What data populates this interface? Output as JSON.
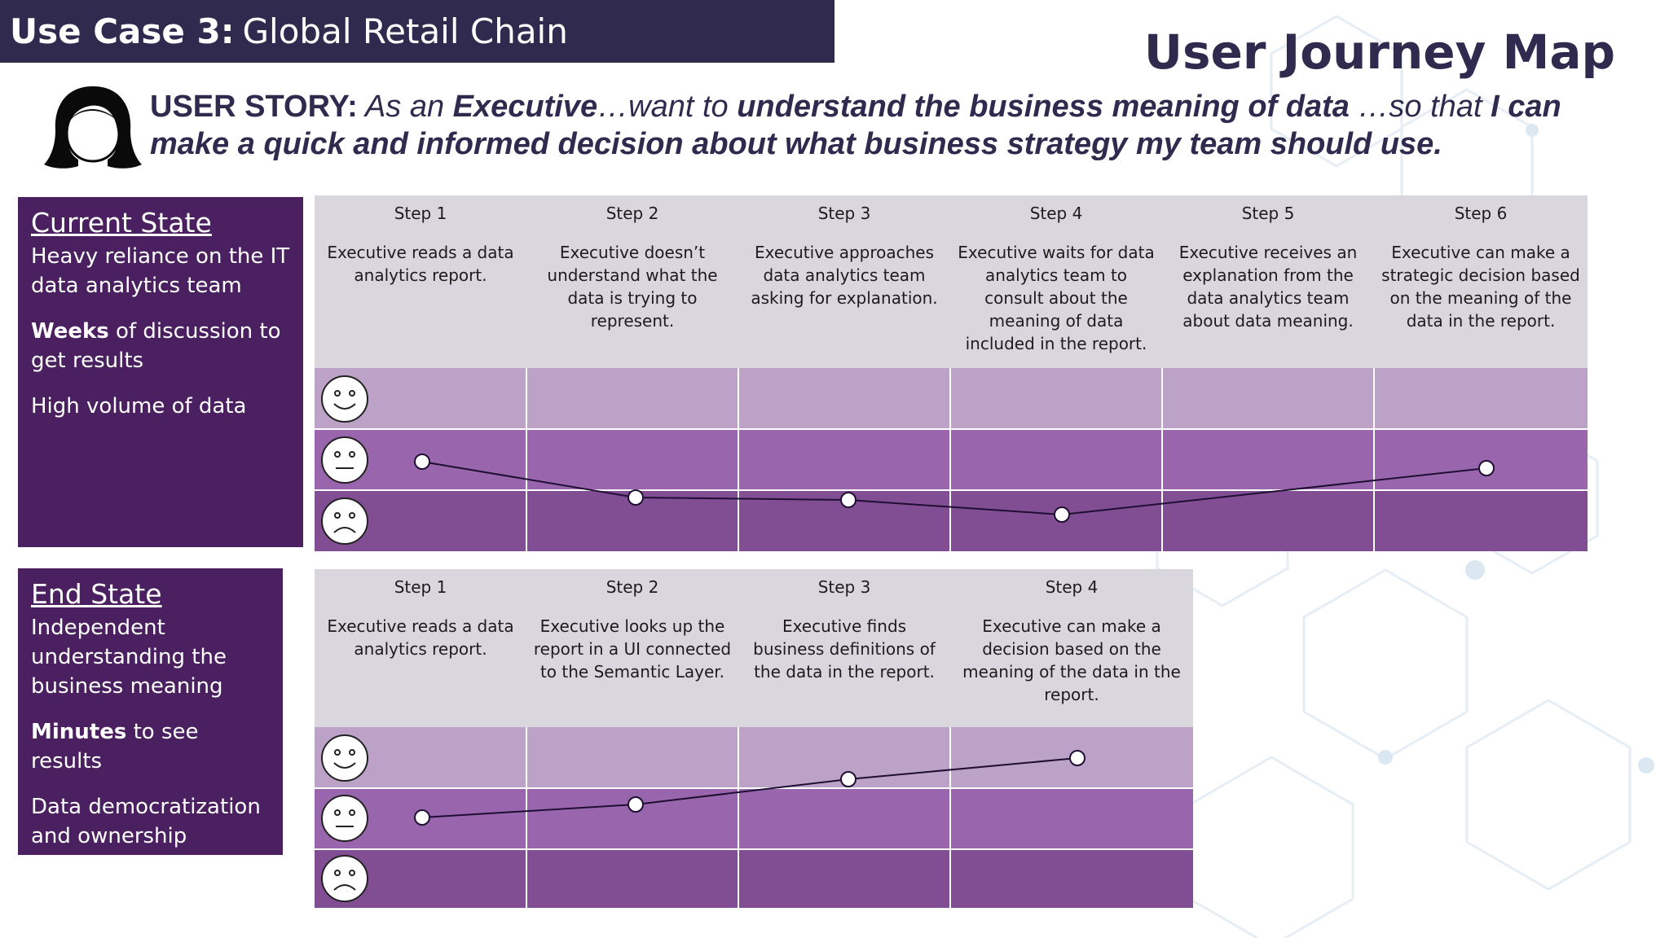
{
  "title": {
    "bold": "Use Case 3:",
    "rest": "Global Retail Chain"
  },
  "heading": "User Journey Map",
  "user_story": {
    "label": "USER STORY:",
    "t1": " As an ",
    "b1": "Executive",
    "t2": "…want to ",
    "b2": "understand the business meaning of data",
    "t3": " …so that ",
    "b3": "I can make a quick and informed decision about what business strategy my team should use."
  },
  "current_state": {
    "heading": "Current State",
    "item1": "Heavy reliance on the IT data analytics team",
    "item2_bold": "Weeks",
    "item2_rest": " of discussion to get results",
    "item3": "High volume of data"
  },
  "end_state": {
    "heading": "End State",
    "item1": "Independent understanding the business meaning",
    "item2_bold": "Minutes",
    "item2_rest": " to see results",
    "item3": " Data democratization and ownership"
  },
  "current_steps": [
    {
      "title": "Step 1",
      "desc": "Executive reads a data analytics report."
    },
    {
      "title": "Step 2",
      "desc": "Executive doesn’t understand what the data is trying to represent."
    },
    {
      "title": "Step 3",
      "desc": "Executive approaches data analytics team asking for explanation."
    },
    {
      "title": "Step 4",
      "desc": "Executive waits for data analytics team to consult about the meaning of data included in the report."
    },
    {
      "title": "Step 5",
      "desc": "Executive receives an explanation from the data analytics team about data meaning."
    },
    {
      "title": "Step 6",
      "desc": "Executive can make a strategic decision based on the meaning of the data in the report."
    }
  ],
  "end_steps": [
    {
      "title": "Step 1",
      "desc": "Executive reads a data analytics report."
    },
    {
      "title": "Step 2",
      "desc": "Executive looks up the report in a UI connected to the Semantic Layer."
    },
    {
      "title": "Step 3",
      "desc": "Executive finds business definitions of the data in the report."
    },
    {
      "title": "Step 4",
      "desc": "Executive can make a decision based on the meaning of the data in the report."
    }
  ],
  "emotion_levels": [
    "happy-face-icon",
    "neutral-face-icon",
    "sad-face-icon"
  ],
  "current_curve_sentiment": [
    0.0,
    -0.6,
    -0.63,
    -0.9,
    null,
    0.1
  ],
  "end_curve_sentiment": [
    0.0,
    0.2,
    0.65,
    1.0
  ],
  "colors": {
    "title_bg": "#2f2a4e",
    "state_box": "#4a2060",
    "header_bg": "#d9d6dd",
    "band_happy": "#bca2c7",
    "band_neutral": "#9966ae",
    "band_sad": "#814d93"
  }
}
